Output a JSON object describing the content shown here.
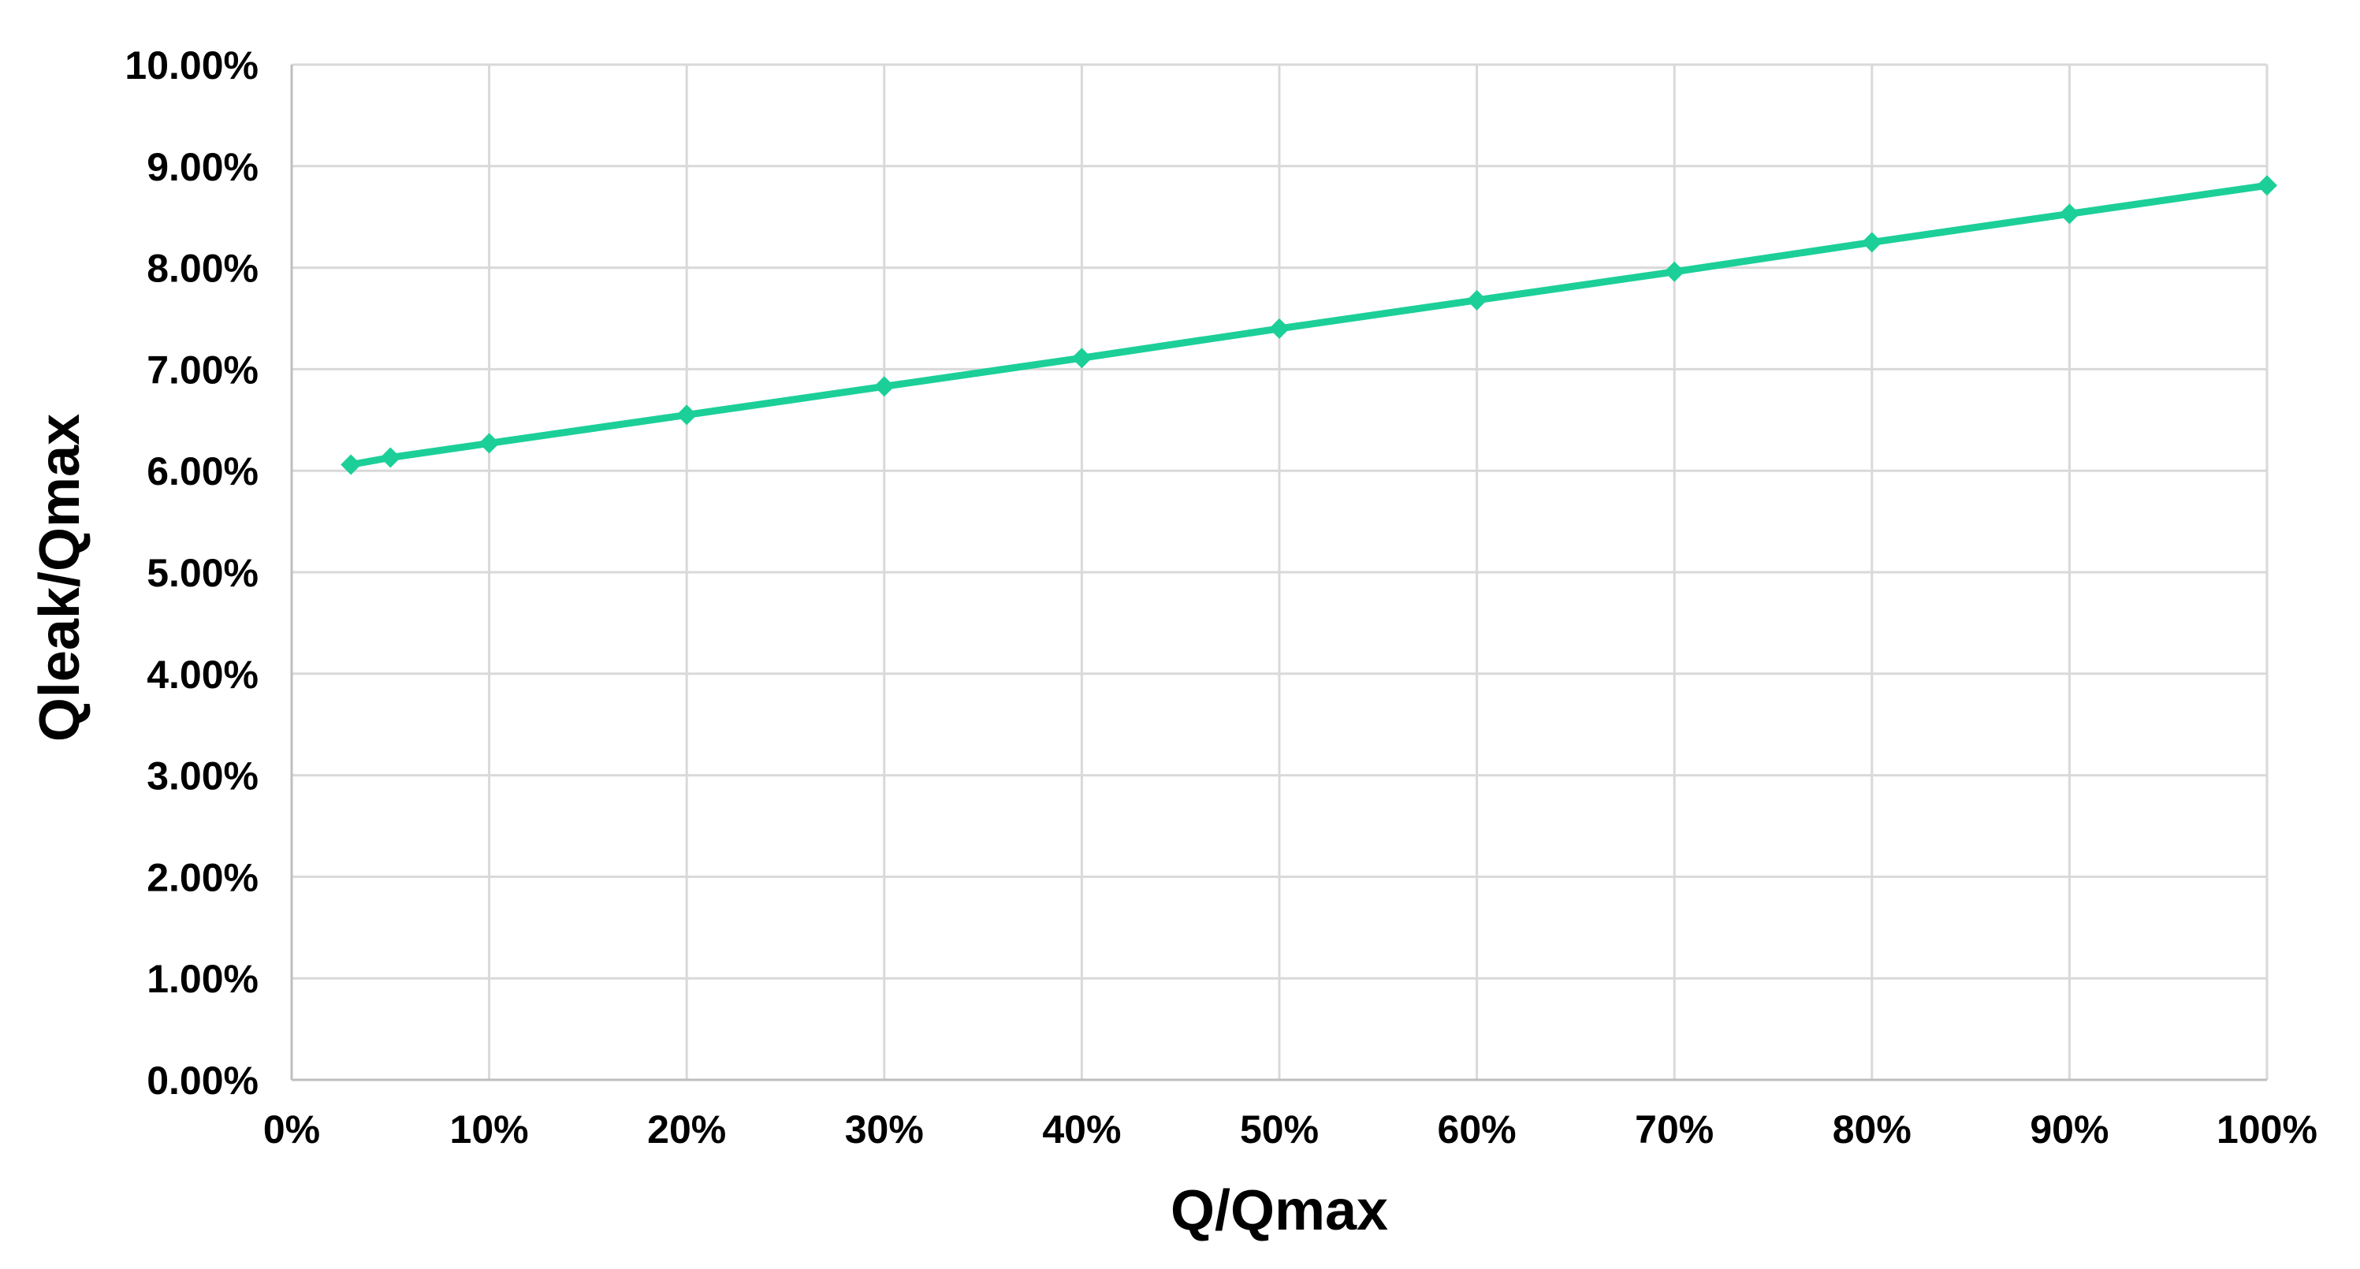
{
  "chart_data": {
    "type": "line",
    "title": "",
    "xlabel": "Q/Qmax",
    "ylabel": "Qleak/Qmax",
    "xlim": [
      0,
      100
    ],
    "ylim": [
      0,
      10
    ],
    "x_ticks": [
      "0%",
      "10%",
      "20%",
      "30%",
      "40%",
      "50%",
      "60%",
      "70%",
      "80%",
      "90%",
      "100%"
    ],
    "y_ticks": [
      "0.00%",
      "1.00%",
      "2.00%",
      "3.00%",
      "4.00%",
      "5.00%",
      "6.00%",
      "7.00%",
      "8.00%",
      "9.00%",
      "10.00%"
    ],
    "grid": true,
    "legend": "none",
    "x_unit": "%",
    "y_unit": "%",
    "series": [
      {
        "color": "#1ccf98",
        "marker": "diamond",
        "x": [
          3,
          5,
          10,
          20,
          30,
          40,
          50,
          60,
          70,
          80,
          90,
          100
        ],
        "y": [
          6.06,
          6.13,
          6.27,
          6.55,
          6.83,
          7.11,
          7.4,
          7.68,
          7.96,
          8.25,
          8.53,
          8.81
        ]
      }
    ]
  }
}
